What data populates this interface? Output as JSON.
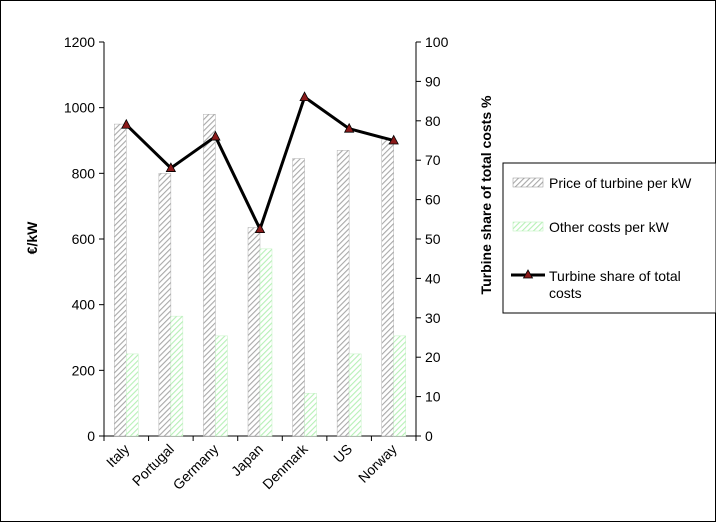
{
  "chart_data": {
    "type": "bar",
    "categories": [
      "Italy",
      "Portugal",
      "Germany",
      "Japan",
      "Denmark",
      "US",
      "Norway"
    ],
    "series": [
      {
        "name": "Price of turbine per kW",
        "type": "bar",
        "axis": "left",
        "values": [
          950,
          800,
          980,
          635,
          845,
          870,
          905
        ]
      },
      {
        "name": "Other costs per kW",
        "type": "bar",
        "axis": "left",
        "values": [
          250,
          365,
          305,
          570,
          130,
          250,
          305
        ]
      },
      {
        "name": "Turbine share of total costs",
        "type": "line",
        "axis": "right",
        "values": [
          79,
          68,
          76,
          52.5,
          86,
          78,
          75
        ]
      }
    ],
    "ylabel": "€/kW",
    "ylabel_right": "Turbine share of total costs %",
    "ylim": [
      0,
      1200
    ],
    "ylim_right": [
      0,
      100
    ],
    "yticks": [
      "0",
      "200",
      "400",
      "600",
      "800",
      "1000",
      "1200"
    ],
    "yticks_right": [
      "0",
      "10",
      "20",
      "30",
      "40",
      "50",
      "60",
      "70",
      "80",
      "90",
      "100"
    ],
    "legend": {
      "position": "right",
      "entries": [
        "Price of turbine per kW",
        "Other costs per kW",
        "Turbine share of total costs"
      ]
    },
    "grid": false
  },
  "colors": {
    "turbine_bar_hatch": "#a0a0a0",
    "other_bar_hatch": "#b8f0b8",
    "line": "#000000",
    "marker": "#8b1a1a"
  }
}
